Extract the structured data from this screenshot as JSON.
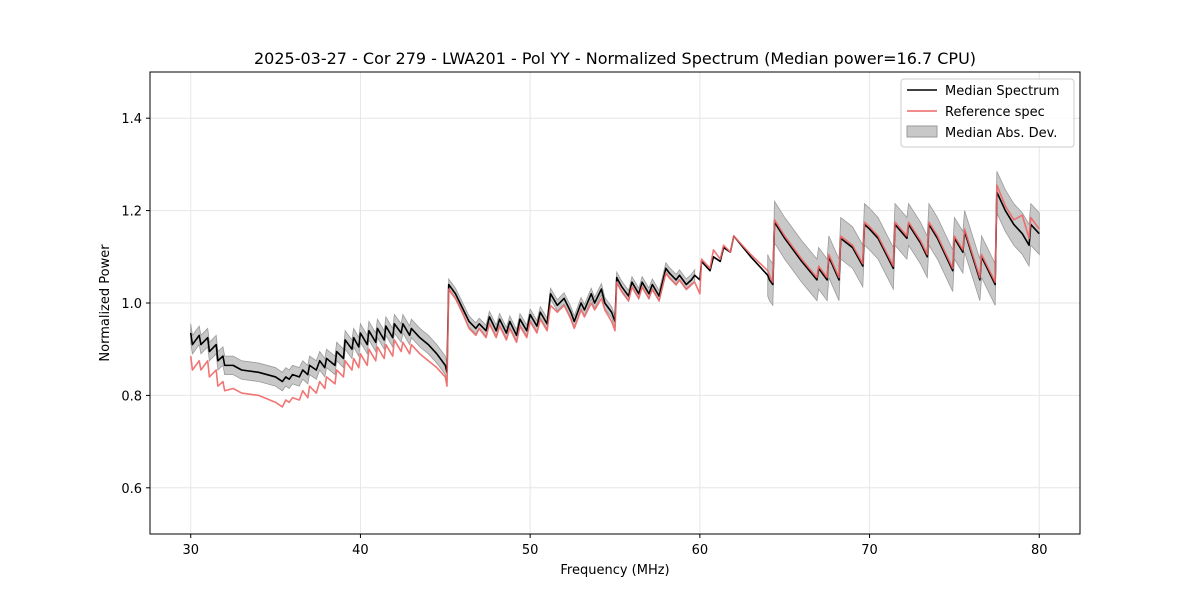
{
  "chart_data": {
    "type": "line",
    "title": "2025-03-27 - Cor 279 - LWA201 - Pol YY - Normalized Spectrum (Median power=16.7 CPU)",
    "xlabel": "Frequency (MHz)",
    "ylabel": "Normalized Power",
    "xlim": [
      27.6,
      82.4
    ],
    "ylim": [
      0.5,
      1.5
    ],
    "xticks": [
      30,
      40,
      50,
      60,
      70,
      80
    ],
    "yticks": [
      0.6,
      0.8,
      1.0,
      1.2,
      1.4
    ],
    "xtick_labels": [
      "30",
      "40",
      "50",
      "60",
      "70",
      "80"
    ],
    "ytick_labels": [
      "0.6",
      "0.8",
      "1.0",
      "1.2",
      "1.4"
    ],
    "grid": true,
    "legend": {
      "position": "top-right",
      "entries": [
        "Median Spectrum",
        "Reference spec",
        "Median Abs. Dev."
      ]
    },
    "colors": {
      "median": "#000000",
      "reference": "#ee6666",
      "mad_fill": "#c8c8c8",
      "mad_edge": "#9a9a9a"
    },
    "series": [
      {
        "name": "Median Spectrum",
        "x": [
          30.0,
          30.1,
          30.5,
          30.6,
          31.0,
          31.1,
          31.5,
          31.6,
          31.9,
          32.0,
          32.5,
          33.0,
          34.0,
          35.0,
          35.4,
          35.6,
          35.8,
          36.0,
          36.4,
          36.6,
          36.9,
          37.0,
          37.4,
          37.6,
          37.9,
          38.0,
          38.5,
          38.6,
          39.0,
          39.1,
          39.5,
          39.6,
          39.9,
          40.0,
          40.4,
          40.5,
          40.9,
          41.0,
          41.4,
          41.5,
          41.9,
          42.0,
          42.4,
          42.5,
          42.9,
          43.0,
          43.5,
          44.0,
          44.5,
          45.0,
          45.1,
          45.2,
          45.6,
          46.0,
          46.4,
          46.8,
          47.0,
          47.4,
          47.6,
          48.0,
          48.2,
          48.6,
          48.8,
          49.2,
          49.4,
          49.8,
          50.0,
          50.4,
          50.6,
          51.0,
          51.2,
          51.6,
          52.0,
          52.4,
          52.6,
          53.0,
          53.2,
          53.6,
          53.8,
          54.2,
          54.4,
          54.8,
          55.0,
          55.1,
          55.4,
          55.8,
          56.0,
          56.4,
          56.6,
          57.0,
          57.2,
          57.6,
          58.0,
          58.2,
          58.6,
          58.8,
          59.2,
          59.5,
          59.7,
          60.0,
          60.1,
          60.6,
          60.8,
          61.2,
          61.4,
          61.8,
          62.0,
          63.0,
          64.0,
          64.1,
          64.3,
          64.4,
          65.0,
          66.0,
          66.9,
          67.0,
          67.5,
          67.6,
          68.2,
          68.3,
          69.0,
          69.6,
          69.7,
          70.0,
          70.5,
          71.4,
          71.5,
          72.2,
          72.3,
          73.0,
          73.4,
          73.5,
          74.0,
          74.9,
          75.0,
          75.5,
          75.6,
          76.5,
          76.6,
          77.4,
          77.5,
          78.0,
          78.5,
          79.0,
          79.4,
          79.5,
          80.0
        ],
        "values": [
          0.935,
          0.91,
          0.93,
          0.91,
          0.925,
          0.895,
          0.91,
          0.875,
          0.885,
          0.865,
          0.865,
          0.855,
          0.85,
          0.84,
          0.83,
          0.84,
          0.835,
          0.845,
          0.84,
          0.855,
          0.845,
          0.865,
          0.855,
          0.875,
          0.86,
          0.88,
          0.865,
          0.895,
          0.88,
          0.92,
          0.9,
          0.925,
          0.905,
          0.935,
          0.91,
          0.94,
          0.915,
          0.945,
          0.92,
          0.95,
          0.925,
          0.955,
          0.935,
          0.955,
          0.93,
          0.945,
          0.925,
          0.91,
          0.89,
          0.865,
          0.85,
          1.04,
          1.02,
          0.99,
          0.96,
          0.945,
          0.955,
          0.94,
          0.97,
          0.94,
          0.965,
          0.935,
          0.96,
          0.93,
          0.965,
          0.94,
          0.975,
          0.95,
          0.98,
          0.955,
          1.02,
          0.995,
          1.01,
          0.98,
          0.96,
          1.0,
          0.985,
          1.02,
          1.0,
          1.03,
          1.0,
          0.98,
          0.96,
          1.055,
          1.035,
          1.015,
          1.045,
          1.02,
          1.045,
          1.02,
          1.04,
          1.015,
          1.075,
          1.065,
          1.05,
          1.06,
          1.04,
          1.05,
          1.06,
          1.05,
          1.09,
          1.07,
          1.1,
          1.09,
          1.12,
          1.11,
          1.145,
          1.1,
          1.06,
          1.05,
          1.04,
          1.175,
          1.14,
          1.09,
          1.05,
          1.075,
          1.05,
          1.1,
          1.05,
          1.14,
          1.12,
          1.08,
          1.17,
          1.16,
          1.14,
          1.075,
          1.17,
          1.14,
          1.17,
          1.13,
          1.1,
          1.17,
          1.14,
          1.07,
          1.14,
          1.11,
          1.155,
          1.05,
          1.1,
          1.04,
          1.24,
          1.2,
          1.17,
          1.15,
          1.125,
          1.17,
          1.15
        ]
      },
      {
        "name": "Reference spec",
        "x": [
          30.0,
          30.1,
          30.5,
          30.6,
          31.0,
          31.1,
          31.5,
          31.6,
          31.9,
          32.0,
          32.5,
          33.0,
          34.0,
          35.0,
          35.4,
          35.6,
          35.8,
          36.0,
          36.4,
          36.6,
          36.9,
          37.0,
          37.4,
          37.6,
          37.9,
          38.0,
          38.5,
          38.6,
          39.0,
          39.1,
          39.5,
          39.6,
          39.9,
          40.0,
          40.4,
          40.5,
          40.9,
          41.0,
          41.4,
          41.5,
          41.9,
          42.0,
          42.4,
          42.5,
          42.9,
          43.0,
          43.5,
          44.0,
          44.5,
          45.0,
          45.1,
          45.2,
          45.6,
          46.0,
          46.4,
          46.8,
          47.0,
          47.4,
          47.6,
          48.0,
          48.2,
          48.6,
          48.8,
          49.2,
          49.4,
          49.8,
          50.0,
          50.4,
          50.6,
          51.0,
          51.2,
          51.6,
          52.0,
          52.4,
          52.6,
          53.0,
          53.2,
          53.6,
          53.8,
          54.2,
          54.4,
          54.8,
          55.0,
          55.1,
          55.4,
          55.8,
          56.0,
          56.4,
          56.6,
          57.0,
          57.2,
          57.6,
          58.0,
          58.2,
          58.6,
          58.8,
          59.2,
          59.5,
          59.7,
          60.0,
          60.1,
          60.6,
          60.8,
          61.2,
          61.4,
          61.8,
          62.0,
          63.0,
          64.0,
          64.1,
          64.3,
          64.4,
          65.0,
          66.0,
          66.9,
          67.0,
          67.5,
          67.6,
          68.2,
          68.3,
          69.0,
          69.6,
          69.7,
          70.0,
          70.5,
          71.4,
          71.5,
          72.2,
          72.3,
          73.0,
          73.4,
          73.5,
          74.0,
          74.9,
          75.0,
          75.5,
          75.6,
          76.5,
          76.6,
          77.4,
          77.5,
          78.0,
          78.5,
          79.0,
          79.4,
          79.5,
          80.0
        ],
        "values": [
          0.885,
          0.855,
          0.875,
          0.855,
          0.875,
          0.84,
          0.855,
          0.82,
          0.83,
          0.81,
          0.815,
          0.805,
          0.8,
          0.785,
          0.775,
          0.79,
          0.785,
          0.795,
          0.79,
          0.81,
          0.795,
          0.82,
          0.805,
          0.83,
          0.815,
          0.84,
          0.825,
          0.855,
          0.84,
          0.875,
          0.855,
          0.88,
          0.86,
          0.89,
          0.865,
          0.9,
          0.875,
          0.905,
          0.88,
          0.91,
          0.885,
          0.92,
          0.895,
          0.915,
          0.89,
          0.91,
          0.89,
          0.875,
          0.86,
          0.84,
          0.82,
          1.03,
          1.01,
          0.98,
          0.945,
          0.93,
          0.945,
          0.925,
          0.955,
          0.925,
          0.95,
          0.92,
          0.945,
          0.915,
          0.95,
          0.925,
          0.96,
          0.935,
          0.965,
          0.94,
          0.995,
          0.98,
          0.995,
          0.965,
          0.945,
          0.985,
          0.97,
          1.0,
          0.985,
          1.01,
          0.985,
          0.96,
          0.94,
          1.045,
          1.025,
          1.005,
          1.035,
          1.01,
          1.035,
          1.01,
          1.03,
          1.005,
          1.065,
          1.055,
          1.04,
          1.05,
          1.03,
          1.04,
          1.045,
          1.02,
          1.095,
          1.075,
          1.115,
          1.095,
          1.125,
          1.11,
          1.145,
          1.105,
          1.07,
          1.06,
          1.045,
          1.18,
          1.145,
          1.095,
          1.055,
          1.08,
          1.055,
          1.105,
          1.055,
          1.145,
          1.125,
          1.085,
          1.175,
          1.165,
          1.145,
          1.08,
          1.175,
          1.145,
          1.175,
          1.135,
          1.105,
          1.175,
          1.145,
          1.075,
          1.145,
          1.115,
          1.16,
          1.055,
          1.105,
          1.045,
          1.255,
          1.21,
          1.18,
          1.19,
          1.14,
          1.185,
          1.16
        ]
      }
    ],
    "mad_band": {
      "name": "Median Abs. Dev.",
      "segments": [
        {
          "x_range": [
            30.0,
            45.1
          ],
          "half_width": 0.02
        },
        {
          "x_range": [
            45.2,
            59.7
          ],
          "half_width": 0.012
        },
        {
          "x_range": [
            64.0,
            80.0
          ],
          "half_width": 0.045
        }
      ]
    }
  }
}
